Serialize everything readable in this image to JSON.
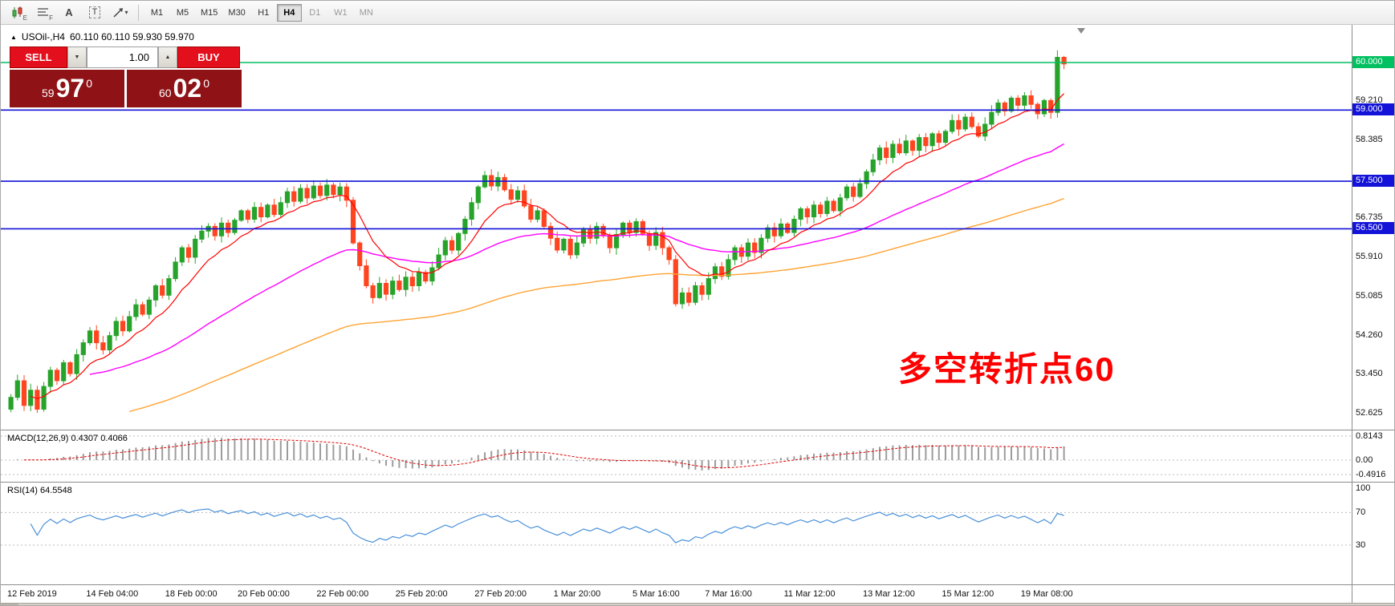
{
  "toolbar": {
    "icon_subs": [
      "E",
      "F"
    ],
    "letter_tools": [
      "A",
      "T"
    ],
    "timeframes": [
      {
        "label": "M1",
        "active": false,
        "muted": false
      },
      {
        "label": "M5",
        "active": false,
        "muted": false
      },
      {
        "label": "M15",
        "active": false,
        "muted": false
      },
      {
        "label": "M30",
        "active": false,
        "muted": false
      },
      {
        "label": "H1",
        "active": false,
        "muted": false
      },
      {
        "label": "H4",
        "active": true,
        "muted": false
      },
      {
        "label": "D1",
        "active": false,
        "muted": true
      },
      {
        "label": "W1",
        "active": false,
        "muted": true
      },
      {
        "label": "MN",
        "active": false,
        "muted": true
      }
    ]
  },
  "chart": {
    "header": {
      "marker": "▲",
      "symbol": "USOil-,H4",
      "ohlc": "60.110 60.110 59.930 59.970"
    },
    "trade_panel": {
      "sell_label": "SELL",
      "buy_label": "BUY",
      "volume": "1.00",
      "dropdown_glyph": "▼",
      "spin_glyph": "▲",
      "bid_small": "59",
      "bid_big": "97",
      "bid_sup": "0",
      "ask_small": "60",
      "ask_big": "02",
      "ask_sup": "0"
    },
    "annotation": "多空转折点60",
    "price_axis": {
      "ticks": [
        {
          "value": 59.21,
          "label": "59.210"
        },
        {
          "value": 58.385,
          "label": "58.385"
        },
        {
          "value": 56.735,
          "label": "56.735"
        },
        {
          "value": 55.91,
          "label": "55.910"
        },
        {
          "value": 55.085,
          "label": "55.085"
        },
        {
          "value": 54.26,
          "label": "54.260"
        },
        {
          "value": 53.45,
          "label": "53.450"
        },
        {
          "value": 52.625,
          "label": "52.625"
        }
      ],
      "levels": [
        {
          "value": 60.0,
          "label": "60.000",
          "color": "#00c060"
        },
        {
          "value": 59.0,
          "label": "59.000",
          "color": "#1212d8"
        },
        {
          "value": 57.5,
          "label": "57.500",
          "color": "#1212d8"
        },
        {
          "value": 56.5,
          "label": "56.500",
          "color": "#1212d8"
        }
      ]
    },
    "candles_close": [
      52.95,
      53.3,
      52.78,
      53.1,
      52.7,
      53.18,
      53.52,
      53.3,
      53.68,
      53.45,
      53.85,
      54.1,
      54.35,
      54.1,
      53.95,
      54.25,
      54.55,
      54.35,
      54.65,
      54.9,
      54.7,
      55.0,
      55.3,
      55.1,
      55.45,
      55.8,
      56.1,
      55.9,
      56.28,
      56.45,
      56.55,
      56.35,
      56.62,
      56.42,
      56.68,
      56.88,
      56.7,
      56.95,
      56.75,
      57.0,
      56.8,
      57.05,
      57.28,
      57.08,
      57.35,
      57.15,
      57.4,
      57.2,
      57.42,
      57.22,
      57.38,
      57.1,
      56.2,
      55.72,
      55.3,
      55.05,
      55.35,
      55.12,
      55.4,
      55.22,
      55.48,
      55.3,
      55.58,
      55.4,
      55.68,
      55.95,
      56.25,
      56.05,
      56.4,
      56.7,
      57.05,
      57.38,
      57.62,
      57.4,
      57.58,
      57.32,
      57.12,
      57.3,
      56.98,
      56.7,
      56.88,
      56.55,
      56.3,
      56.05,
      56.28,
      55.95,
      56.2,
      56.48,
      56.3,
      56.55,
      56.35,
      56.1,
      56.38,
      56.62,
      56.42,
      56.65,
      56.4,
      56.15,
      56.42,
      56.1,
      55.85,
      54.92,
      55.15,
      54.95,
      55.3,
      55.12,
      55.45,
      55.7,
      55.5,
      55.85,
      56.1,
      55.92,
      56.2,
      56.0,
      56.3,
      56.52,
      56.35,
      56.6,
      56.42,
      56.7,
      56.92,
      56.75,
      57.0,
      56.82,
      57.08,
      56.88,
      57.15,
      57.38,
      57.18,
      57.45,
      57.7,
      57.95,
      58.2,
      58.0,
      58.28,
      58.1,
      58.35,
      58.15,
      58.42,
      58.25,
      58.5,
      58.32,
      58.55,
      58.78,
      58.6,
      58.85,
      58.65,
      58.45,
      58.7,
      58.95,
      59.15,
      58.98,
      59.25,
      59.1,
      59.3,
      59.12,
      58.92,
      59.2,
      58.95,
      60.11,
      59.97
    ],
    "time_labels": [
      {
        "text": "12 Feb 2019",
        "index": 0
      },
      {
        "text": "14 Feb 04:00",
        "index": 12
      },
      {
        "text": "18 Feb 00:00",
        "index": 24
      },
      {
        "text": "20 Feb 00:00",
        "index": 35
      },
      {
        "text": "22 Feb 00:00",
        "index": 47
      },
      {
        "text": "25 Feb 20:00",
        "index": 59
      },
      {
        "text": "27 Feb 20:00",
        "index": 71
      },
      {
        "text": "1 Mar 20:00",
        "index": 83
      },
      {
        "text": "5 Mar 16:00",
        "index": 95
      },
      {
        "text": "7 Mar 16:00",
        "index": 106
      },
      {
        "text": "11 Mar 12:00",
        "index": 118
      },
      {
        "text": "13 Mar 12:00",
        "index": 130
      },
      {
        "text": "15 Mar 12:00",
        "index": 142
      },
      {
        "text": "19 Mar 08:00",
        "index": 154
      }
    ]
  },
  "macd": {
    "name": "MACD(12,26,9)",
    "main": "0.4307",
    "signal": "0.4066",
    "axis": [
      {
        "label": "0.8143",
        "value": 0.8143
      },
      {
        "label": "0.00",
        "value": 0.0
      },
      {
        "label": "-0.4916",
        "value": -0.4916
      }
    ]
  },
  "rsi": {
    "name": "RSI(14)",
    "value": "64.5548",
    "axis": [
      {
        "label": "100",
        "value": 100
      },
      {
        "label": "70",
        "value": 70
      },
      {
        "label": "30",
        "value": 30
      }
    ]
  },
  "colors": {
    "up": "#27a32b",
    "down": "#ff4420",
    "ma_fast": "#ff0000",
    "ma_mid": "#ff00ff",
    "ma_slow": "#ffa333",
    "macd_hist": "#9c9c9c",
    "macd_signal": "#e00000",
    "rsi_line": "#4a90d9",
    "annotation": "#ff0000"
  }
}
